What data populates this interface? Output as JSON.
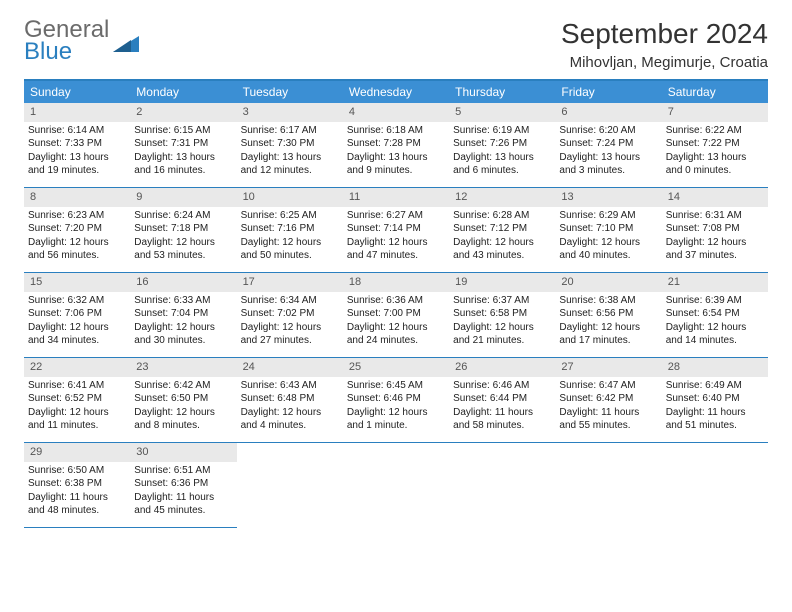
{
  "brand": {
    "general": "General",
    "blue": "Blue"
  },
  "title": "September 2024",
  "location": "Mihovljan, Megimurje, Croatia",
  "colors": {
    "header_bg": "#3b8fd4",
    "header_text": "#ffffff",
    "rule": "#2a7fbf",
    "daynum_bg": "#e9e9e9",
    "body_text": "#222222",
    "logo_gray": "#6b6b6b",
    "logo_blue": "#2a7fbf"
  },
  "weekdays": [
    "Sunday",
    "Monday",
    "Tuesday",
    "Wednesday",
    "Thursday",
    "Friday",
    "Saturday"
  ],
  "days": [
    {
      "n": 1,
      "sunrise": "6:14 AM",
      "sunset": "7:33 PM",
      "dl": "13 hours and 19 minutes."
    },
    {
      "n": 2,
      "sunrise": "6:15 AM",
      "sunset": "7:31 PM",
      "dl": "13 hours and 16 minutes."
    },
    {
      "n": 3,
      "sunrise": "6:17 AM",
      "sunset": "7:30 PM",
      "dl": "13 hours and 12 minutes."
    },
    {
      "n": 4,
      "sunrise": "6:18 AM",
      "sunset": "7:28 PM",
      "dl": "13 hours and 9 minutes."
    },
    {
      "n": 5,
      "sunrise": "6:19 AM",
      "sunset": "7:26 PM",
      "dl": "13 hours and 6 minutes."
    },
    {
      "n": 6,
      "sunrise": "6:20 AM",
      "sunset": "7:24 PM",
      "dl": "13 hours and 3 minutes."
    },
    {
      "n": 7,
      "sunrise": "6:22 AM",
      "sunset": "7:22 PM",
      "dl": "13 hours and 0 minutes."
    },
    {
      "n": 8,
      "sunrise": "6:23 AM",
      "sunset": "7:20 PM",
      "dl": "12 hours and 56 minutes."
    },
    {
      "n": 9,
      "sunrise": "6:24 AM",
      "sunset": "7:18 PM",
      "dl": "12 hours and 53 minutes."
    },
    {
      "n": 10,
      "sunrise": "6:25 AM",
      "sunset": "7:16 PM",
      "dl": "12 hours and 50 minutes."
    },
    {
      "n": 11,
      "sunrise": "6:27 AM",
      "sunset": "7:14 PM",
      "dl": "12 hours and 47 minutes."
    },
    {
      "n": 12,
      "sunrise": "6:28 AM",
      "sunset": "7:12 PM",
      "dl": "12 hours and 43 minutes."
    },
    {
      "n": 13,
      "sunrise": "6:29 AM",
      "sunset": "7:10 PM",
      "dl": "12 hours and 40 minutes."
    },
    {
      "n": 14,
      "sunrise": "6:31 AM",
      "sunset": "7:08 PM",
      "dl": "12 hours and 37 minutes."
    },
    {
      "n": 15,
      "sunrise": "6:32 AM",
      "sunset": "7:06 PM",
      "dl": "12 hours and 34 minutes."
    },
    {
      "n": 16,
      "sunrise": "6:33 AM",
      "sunset": "7:04 PM",
      "dl": "12 hours and 30 minutes."
    },
    {
      "n": 17,
      "sunrise": "6:34 AM",
      "sunset": "7:02 PM",
      "dl": "12 hours and 27 minutes."
    },
    {
      "n": 18,
      "sunrise": "6:36 AM",
      "sunset": "7:00 PM",
      "dl": "12 hours and 24 minutes."
    },
    {
      "n": 19,
      "sunrise": "6:37 AM",
      "sunset": "6:58 PM",
      "dl": "12 hours and 21 minutes."
    },
    {
      "n": 20,
      "sunrise": "6:38 AM",
      "sunset": "6:56 PM",
      "dl": "12 hours and 17 minutes."
    },
    {
      "n": 21,
      "sunrise": "6:39 AM",
      "sunset": "6:54 PM",
      "dl": "12 hours and 14 minutes."
    },
    {
      "n": 22,
      "sunrise": "6:41 AM",
      "sunset": "6:52 PM",
      "dl": "12 hours and 11 minutes."
    },
    {
      "n": 23,
      "sunrise": "6:42 AM",
      "sunset": "6:50 PM",
      "dl": "12 hours and 8 minutes."
    },
    {
      "n": 24,
      "sunrise": "6:43 AM",
      "sunset": "6:48 PM",
      "dl": "12 hours and 4 minutes."
    },
    {
      "n": 25,
      "sunrise": "6:45 AM",
      "sunset": "6:46 PM",
      "dl": "12 hours and 1 minute."
    },
    {
      "n": 26,
      "sunrise": "6:46 AM",
      "sunset": "6:44 PM",
      "dl": "11 hours and 58 minutes."
    },
    {
      "n": 27,
      "sunrise": "6:47 AM",
      "sunset": "6:42 PM",
      "dl": "11 hours and 55 minutes."
    },
    {
      "n": 28,
      "sunrise": "6:49 AM",
      "sunset": "6:40 PM",
      "dl": "11 hours and 51 minutes."
    },
    {
      "n": 29,
      "sunrise": "6:50 AM",
      "sunset": "6:38 PM",
      "dl": "11 hours and 48 minutes."
    },
    {
      "n": 30,
      "sunrise": "6:51 AM",
      "sunset": "6:36 PM",
      "dl": "11 hours and 45 minutes."
    }
  ],
  "labels": {
    "sunrise": "Sunrise:",
    "sunset": "Sunset:",
    "daylight": "Daylight:"
  }
}
